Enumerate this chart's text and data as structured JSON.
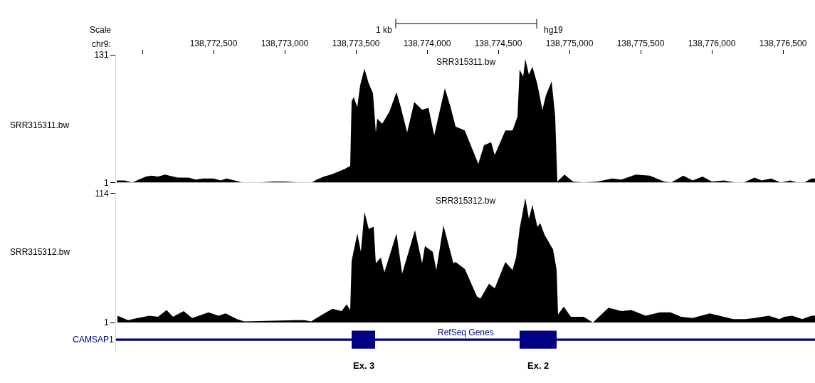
{
  "chart_data": [
    {
      "type": "area",
      "title": "SRR315311.bw",
      "ylabel": "SRR315311.bw",
      "xlabel": "chr9:",
      "xlim": [
        138771815,
        138776725
      ],
      "xticks": [
        {
          "value": 138772000,
          "label": null
        },
        {
          "value": 138772500,
          "label": "138,772,500"
        },
        {
          "value": 138773000,
          "label": "138,773,000"
        },
        {
          "value": 138773500,
          "label": "138,773,500"
        },
        {
          "value": 138774000,
          "label": "138,774,000"
        },
        {
          "value": 138774500,
          "label": "138,774,500"
        },
        {
          "value": 138775000,
          "label": "138,775,000"
        },
        {
          "value": 138775500,
          "label": "138,775,500"
        },
        {
          "value": 138776000,
          "label": "138,776,000"
        },
        {
          "value": 138776500,
          "label": "138,776,500"
        }
      ],
      "ylim": [
        1,
        131
      ],
      "yticks": [
        1,
        131
      ],
      "annotations": [
        "Scale",
        "1 kb",
        "hg19"
      ],
      "series": [
        {
          "color": "#000000",
          "x": [
            138771820,
            138771875,
            138771890,
            138771930,
            138771975,
            138772025,
            138772065,
            138772110,
            138772160,
            138772190,
            138772250,
            138772325,
            138772375,
            138772425,
            138772500,
            138772550,
            138772590,
            138772650,
            138772700,
            138772745,
            138772775,
            138772820,
            138772925,
            138773000,
            138773100,
            138773190,
            138773225,
            138773275,
            138773325,
            138773375,
            138773425,
            138773460,
            138773470,
            138773485,
            138773510,
            138773530,
            138773560,
            138773590,
            138773620,
            138773640,
            138773650,
            138773685,
            138773735,
            138773785,
            138773815,
            138773860,
            138773910,
            138773965,
            138774010,
            138774050,
            138774125,
            138774165,
            138774200,
            138774265,
            138774360,
            138774400,
            138774450,
            138774475,
            138774550,
            138774600,
            138774635,
            138774650,
            138774675,
            138774690,
            138774715,
            138774740,
            138774775,
            138774810,
            138774835,
            138774875,
            138774900,
            138774915,
            138774965,
            138775025,
            138775100,
            138775200,
            138775300,
            138775365,
            138775465,
            138775565,
            138775665,
            138775715,
            138775800,
            138775865,
            138775935,
            138776000,
            138776085,
            138776165,
            138776200,
            138776225,
            138776300,
            138776350,
            138776415,
            138776485,
            138776550,
            138776600,
            138776650,
            138776700,
            138776725
          ],
          "values": [
            3,
            3,
            null,
            1,
            4,
            7,
            8,
            7,
            9,
            8,
            6,
            6,
            4,
            5,
            5,
            3,
            5,
            3,
            1,
            1,
            null,
            1,
            2,
            2,
            1,
            1,
            4,
            7,
            9,
            12,
            15,
            18,
            84,
            88,
            78,
            100,
            117,
            102,
            92,
            52,
            66,
            61,
            73,
            93,
            78,
            52,
            83,
            75,
            77,
            49,
            97,
            78,
            58,
            54,
            20,
            39,
            42,
            29,
            54,
            54,
            68,
            116,
            109,
            127,
            111,
            119,
            101,
            75,
            90,
            104,
            68,
            2,
            9,
            2,
            1,
            2,
            5,
            4,
            9,
            8,
            2,
            1,
            8,
            3,
            7,
            2,
            3,
            1,
            null,
            1,
            6,
            3,
            5,
            1,
            3,
            1,
            1,
            5,
            5
          ]
        }
      ]
    },
    {
      "type": "area",
      "title": "SRR315312.bw",
      "ylabel": "SRR315312.bw",
      "tick_labels": "y",
      "xlim": [
        138771815,
        138776725
      ],
      "ylim": [
        1,
        114
      ],
      "yticks": [
        1,
        114
      ],
      "series": [
        {
          "color": "#000000",
          "x": [
            138771825,
            138771900,
            138771965,
            138772050,
            138772110,
            138772170,
            138772215,
            138772290,
            138772350,
            138772465,
            138772535,
            138772585,
            138772665,
            138772715,
            138772750,
            138773075,
            138773140,
            138773150,
            138773185,
            138773265,
            138773335,
            138773400,
            138773435,
            138773460,
            138773470,
            138773510,
            138773535,
            138773560,
            138773590,
            138773625,
            138773640,
            138773675,
            138773700,
            138773785,
            138773825,
            138773915,
            138773965,
            138773985,
            138774040,
            138774065,
            138774115,
            138774185,
            138774200,
            138774265,
            138774350,
            138774375,
            138774435,
            138774475,
            138774550,
            138774600,
            138774625,
            138774650,
            138774690,
            138774715,
            138774740,
            138774775,
            138774795,
            138774825,
            138774885,
            138774910,
            138774920,
            138774960,
            138775010,
            138775100,
            138775165,
            138775190,
            138775215,
            138775275,
            138775365,
            138775435,
            138775535,
            138775635,
            138775710,
            138775785,
            138775865,
            138775985,
            138776085,
            138776150,
            138776200,
            138776235,
            138776300,
            138776400,
            138776475,
            138776510,
            138776565,
            138776635,
            138776700,
            138776725
          ],
          "values": [
            7,
            3,
            5,
            7,
            6,
            12,
            6,
            11,
            5,
            10,
            7,
            9,
            4,
            2,
            null,
            3,
            3,
            null,
            2,
            8,
            13,
            11,
            17,
            12,
            55,
            79,
            63,
            98,
            83,
            85,
            53,
            58,
            45,
            79,
            44,
            82,
            53,
            68,
            63,
            47,
            86,
            53,
            54,
            48,
            24,
            22,
            35,
            31,
            54,
            47,
            58,
            83,
            110,
            92,
            104,
            85,
            88,
            78,
            65,
            47,
            8,
            15,
            6,
            6,
            1,
            null,
            7,
            14,
            11,
            12,
            7,
            10,
            10,
            6,
            5,
            9,
            6,
            4,
            null,
            4,
            5,
            7,
            4,
            6,
            7,
            4,
            7,
            7
          ]
        }
      ]
    },
    {
      "type": "bar",
      "orientation": "horizontal",
      "title": "RefSeq Genes",
      "tick_labels": "y",
      "categories": [
        "CAMSAP1"
      ],
      "xlim": [
        138771815,
        138776725
      ],
      "annotations": [
        "Ex. 3",
        "Ex. 2"
      ],
      "series": [
        {
          "color": "#000080",
          "values": [
            4910
          ],
          "base": [
            138771815
          ]
        },
        {
          "color": "#000080",
          "values": [
            165
          ],
          "base": [
            138773470
          ]
        },
        {
          "color": "#000080",
          "values": [
            260
          ],
          "base": [
            138774650
          ]
        }
      ]
    }
  ]
}
